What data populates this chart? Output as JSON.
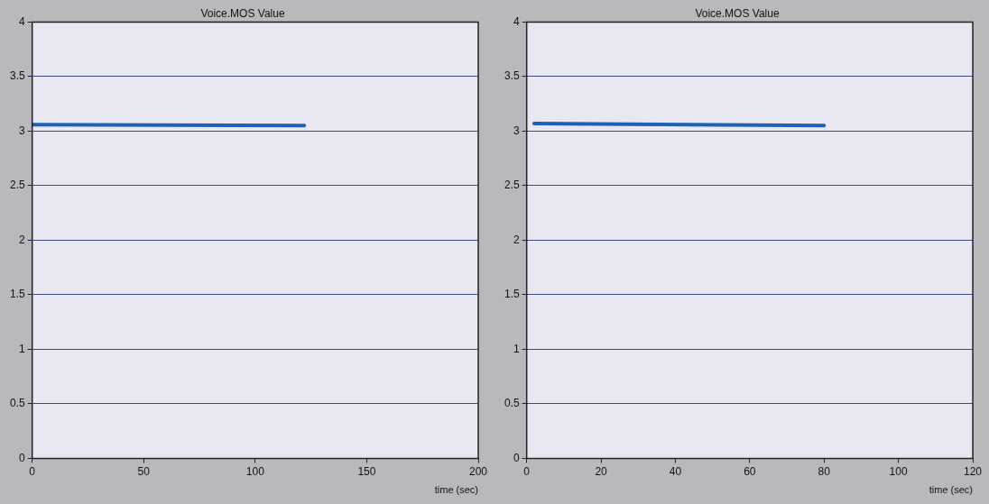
{
  "chart_data": [
    {
      "type": "line",
      "title": "Voice.MOS Value",
      "xlabel": "time (sec)",
      "x": [
        0,
        122
      ],
      "series": [
        {
          "color": "#1f5fb4",
          "values": [
            3.06,
            3.05
          ]
        }
      ],
      "xlim": [
        0,
        200
      ],
      "xticks": [
        0,
        50,
        100,
        150,
        200
      ],
      "ylim": [
        0,
        4
      ],
      "yticks": [
        0,
        0.5,
        1,
        1.5,
        2,
        2.5,
        3,
        3.5,
        4
      ],
      "grid": "y",
      "legend": false,
      "marker": "none"
    },
    {
      "type": "line",
      "title": "Voice.MOS Value",
      "xlabel": "time (sec)",
      "x": [
        2,
        80
      ],
      "series": [
        {
          "color": "#1f5fb4",
          "values": [
            3.07,
            3.05
          ]
        }
      ],
      "xlim": [
        0,
        120
      ],
      "xticks": [
        0,
        20,
        40,
        60,
        80,
        100,
        120
      ],
      "ylim": [
        0,
        4
      ],
      "yticks": [
        0,
        0.5,
        1,
        1.5,
        2,
        2.5,
        3,
        3.5,
        4
      ],
      "grid": "y",
      "legend": false,
      "marker": "none"
    }
  ]
}
